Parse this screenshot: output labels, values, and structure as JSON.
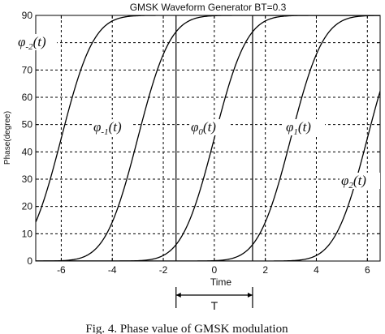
{
  "chart_data": {
    "type": "line",
    "title": "GMSK Waveform Generator BT=0.3",
    "xlabel": "Time",
    "ylabel": "Phase(degree)",
    "xlim": [
      -7,
      6.5
    ],
    "ylim": [
      0,
      90
    ],
    "xticks": [
      -6,
      -4,
      -2,
      0,
      2,
      4,
      6
    ],
    "yticks": [
      0,
      10,
      20,
      30,
      40,
      50,
      60,
      70,
      80,
      90
    ],
    "x_grid_lines": [
      -6,
      -4,
      -2,
      0,
      2,
      4,
      6
    ],
    "y_grid_lines": [
      10,
      20,
      30,
      40,
      50,
      60,
      70,
      80
    ],
    "solid_lines_x": [
      -1.5,
      1.5
    ],
    "curve_shape": {
      "sigma": 1.0
    },
    "series": [
      {
        "label_base": "φ",
        "label_sub": "-2",
        "label_arg": "(t)",
        "center": -6.0
      },
      {
        "label_base": "φ",
        "label_sub": "-1",
        "label_arg": "(t)",
        "center": -3.0
      },
      {
        "label_base": "φ",
        "label_sub": "0",
        "label_arg": "(t)",
        "center": 0.0
      },
      {
        "label_base": "φ",
        "label_sub": "1",
        "label_arg": "(t)",
        "center": 3.0
      },
      {
        "label_base": "φ",
        "label_sub": "2",
        "label_arg": "(t)",
        "center": 6.0
      }
    ],
    "interval_label": "T",
    "interval_x": [
      -1.5,
      1.5
    ]
  },
  "caption": "Fig. 4. Phase value of GMSK modulation"
}
